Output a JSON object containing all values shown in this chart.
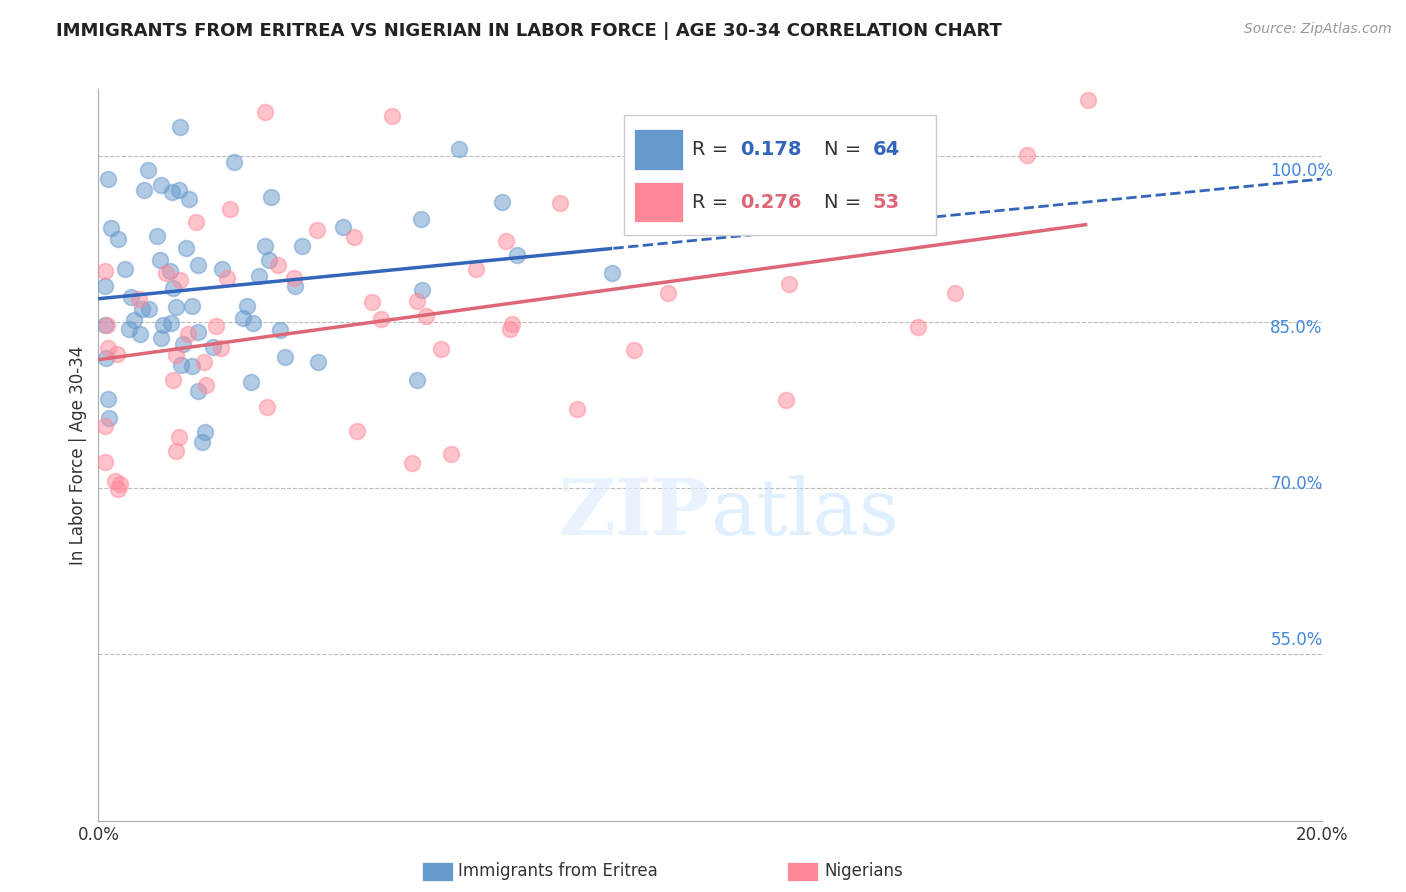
{
  "title": "IMMIGRANTS FROM ERITREA VS NIGERIAN IN LABOR FORCE | AGE 30-34 CORRELATION CHART",
  "source": "Source: ZipAtlas.com",
  "ylabel": "In Labor Force | Age 30-34",
  "xlim": [
    0.0,
    0.2
  ],
  "ylim": [
    0.4,
    1.06
  ],
  "yticks": [
    0.55,
    0.7,
    0.85,
    1.0
  ],
  "ytick_labels": [
    "55.0%",
    "70.0%",
    "85.0%",
    "100.0%"
  ],
  "xtick_labels": [
    "0.0%",
    "",
    "",
    "",
    "",
    "20.0%"
  ],
  "blue_R": 0.178,
  "blue_N": 64,
  "pink_R": 0.276,
  "pink_N": 53,
  "blue_color": "#6699CC",
  "pink_color": "#FF8899",
  "blue_line_color": "#3366BB",
  "pink_line_color": "#DD6677",
  "blue_label": "Immigrants from Eritrea",
  "pink_label": "Nigerians"
}
